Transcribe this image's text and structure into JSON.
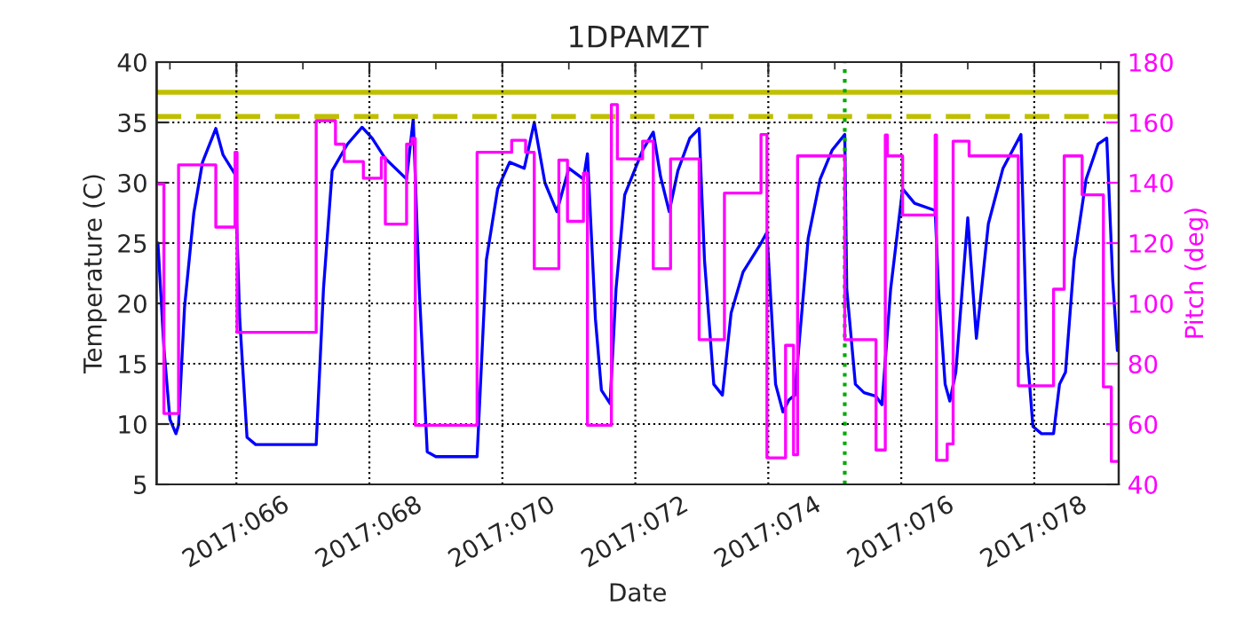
{
  "chart_data": {
    "type": "line",
    "title": "1DPAMZT",
    "xlabel": "Date",
    "ylabel": "Temperature (C)",
    "y2label": "Pitch (deg)",
    "xlim": [
      "2017-03-05T19:12",
      "2017-03-20T06:29"
    ],
    "xticks": [
      {
        "value": "2017-03-06",
        "label": null
      },
      {
        "value": "2017-03-07",
        "label": "2017:066"
      },
      {
        "value": "2017-03-08",
        "label": null
      },
      {
        "value": "2017-03-09",
        "label": "2017:068"
      },
      {
        "value": "2017-03-10",
        "label": null
      },
      {
        "value": "2017-03-11",
        "label": "2017:070"
      },
      {
        "value": "2017-03-12",
        "label": null
      },
      {
        "value": "2017-03-13",
        "label": "2017:072"
      },
      {
        "value": "2017-03-14",
        "label": null
      },
      {
        "value": "2017-03-15",
        "label": "2017:074"
      },
      {
        "value": "2017-03-16",
        "label": null
      },
      {
        "value": "2017-03-17",
        "label": "2017:076"
      },
      {
        "value": "2017-03-18",
        "label": null
      },
      {
        "value": "2017-03-19",
        "label": "2017:078"
      },
      {
        "value": "2017-03-20",
        "label": null
      }
    ],
    "ylim": [
      5,
      40
    ],
    "yticks": [
      5,
      10,
      15,
      20,
      25,
      30,
      35,
      40
    ],
    "y2lim": [
      40,
      180
    ],
    "y2ticks": [
      40,
      60,
      80,
      100,
      120,
      140,
      160,
      180
    ],
    "grid": true,
    "series": [
      {
        "color": "#0000ff",
        "x": [
          "2017-03-05T19:41",
          "2017-03-05T21:50",
          "2017-03-06T00:00",
          "2017-03-06T02:10",
          "2017-03-06T03:07",
          "2017-03-06T05:17",
          "2017-03-06T08:38",
          "2017-03-06T11:46",
          "2017-03-06T16:34",
          "2017-03-06T19:12",
          "2017-03-06T23:31",
          "2017-03-07T01:12",
          "2017-03-07T03:50",
          "2017-03-07T06:58",
          "2017-03-08T04:48",
          "2017-03-08T07:26",
          "2017-03-08T10:34",
          "2017-03-08T16:05",
          "2017-03-08T21:22",
          "2017-03-09T00:58",
          "2017-03-09T05:46",
          "2017-03-09T13:26",
          "2017-03-09T15:50",
          "2017-03-09T18:00",
          "2017-03-09T20:53",
          "2017-03-10T00:00",
          "2017-03-10T14:53",
          "2017-03-10T18:14",
          "2017-03-10T22:19",
          "2017-03-11T02:38",
          "2017-03-11T07:55",
          "2017-03-11T11:31",
          "2017-03-11T15:22",
          "2017-03-11T19:41",
          "2017-03-12T00:00",
          "2017-03-12T05:17",
          "2017-03-12T06:43",
          "2017-03-12T09:36",
          "2017-03-12T11:46",
          "2017-03-12T14:53",
          "2017-03-12T17:02",
          "2017-03-12T20:10",
          "2017-03-13T02:38",
          "2017-03-13T06:29",
          "2017-03-13T09:07",
          "2017-03-13T12:14",
          "2017-03-13T15:22",
          "2017-03-13T19:41",
          "2017-03-13T23:02",
          "2017-03-14T00:58",
          "2017-03-14T04:19",
          "2017-03-14T07:26",
          "2017-03-14T10:34",
          "2017-03-14T14:53",
          "2017-03-14T20:53",
          "2017-03-14T23:31",
          "2017-03-15T02:38",
          "2017-03-15T05:17",
          "2017-03-15T07:26",
          "2017-03-15T09:36",
          "2017-03-15T11:17",
          "2017-03-15T14:24",
          "2017-03-15T18:43",
          "2017-03-15T23:02",
          "2017-03-16T03:36",
          "2017-03-16T04:19",
          "2017-03-16T07:26",
          "2017-03-16T10:34",
          "2017-03-16T14:53",
          "2017-03-16T17:02",
          "2017-03-16T20:10",
          "2017-03-17T00:29",
          "2017-03-17T04:48",
          "2017-03-17T12:14",
          "2017-03-17T13:26",
          "2017-03-17T15:50",
          "2017-03-17T17:31",
          "2017-03-17T19:41",
          "2017-03-18T00:00",
          "2017-03-18T03:07",
          "2017-03-18T07:26",
          "2017-03-18T12:43",
          "2017-03-18T19:12",
          "2017-03-18T21:22",
          "2017-03-18T23:31",
          "2017-03-19T02:38",
          "2017-03-19T06:58",
          "2017-03-19T09:07",
          "2017-03-19T11:17",
          "2017-03-19T14:24",
          "2017-03-19T18:43",
          "2017-03-19T23:02",
          "2017-03-20T02:10",
          "2017-03-20T04:19",
          "2017-03-20T06:00"
        ],
        "values": [
          25,
          16.3,
          10.4,
          9.2,
          9.9,
          19.7,
          27.5,
          31.7,
          34.5,
          32.3,
          30.7,
          18.7,
          8.9,
          8.3,
          8.3,
          21.2,
          31,
          33.2,
          34.6,
          33.7,
          32,
          30.3,
          35.3,
          21.2,
          7.7,
          7.3,
          7.3,
          23.6,
          29.5,
          31.7,
          31.2,
          35,
          30,
          27.6,
          31.2,
          30.3,
          32.4,
          18.7,
          12.8,
          11.7,
          21.2,
          29,
          32.7,
          34.2,
          30.5,
          27.6,
          31,
          33.7,
          34.5,
          23.6,
          13.3,
          12.4,
          19.2,
          22.6,
          24.8,
          25.9,
          13.3,
          11,
          12,
          12.4,
          17.1,
          25.4,
          30.3,
          32.7,
          34,
          21.2,
          13.3,
          12.6,
          12.3,
          11.6,
          21.2,
          29.5,
          28.3,
          27.7,
          21.2,
          13.3,
          11.9,
          14.3,
          27.1,
          17.1,
          26.6,
          31.2,
          34,
          16.1,
          9.8,
          9.2,
          9.2,
          13.3,
          14.3,
          23.6,
          30.3,
          33.2,
          33.7,
          22,
          16.1
        ]
      },
      {
        "type": "step",
        "axis": "y2",
        "color": "#ff00ff",
        "x": [
          "2017-03-05T19:41",
          "2017-03-05T21:50",
          "2017-03-06T03:07",
          "2017-03-06T16:34",
          "2017-03-06T23:31",
          "2017-03-07T00:14",
          "2017-03-08T04:48",
          "2017-03-08T11:46",
          "2017-03-08T14:53",
          "2017-03-08T21:50",
          "2017-03-09T04:19",
          "2017-03-09T05:46",
          "2017-03-09T13:26",
          "2017-03-09T15:22",
          "2017-03-09T16:34",
          "2017-03-10T14:53",
          "2017-03-11T03:22",
          "2017-03-11T08:24",
          "2017-03-11T11:31",
          "2017-03-11T20:24",
          "2017-03-11T23:31",
          "2017-03-12T05:17",
          "2017-03-12T06:43",
          "2017-03-12T15:22",
          "2017-03-12T17:31",
          "2017-03-13T02:38",
          "2017-03-13T06:29",
          "2017-03-13T12:43",
          "2017-03-13T23:02",
          "2017-03-14T08:10",
          "2017-03-14T21:22",
          "2017-03-14T23:31",
          "2017-03-15T06:14",
          "2017-03-15T09:07",
          "2017-03-15T10:34",
          "2017-03-16T03:36",
          "2017-03-16T14:53",
          "2017-03-16T18:14",
          "2017-03-16T18:58",
          "2017-03-17T00:29",
          "2017-03-17T12:14",
          "2017-03-17T12:43",
          "2017-03-17T16:34",
          "2017-03-17T18:43",
          "2017-03-18T00:29",
          "2017-03-18T18:14",
          "2017-03-19T06:58",
          "2017-03-19T10:48",
          "2017-03-19T17:17",
          "2017-03-20T00:58",
          "2017-03-20T03:50",
          "2017-03-20T06:00"
        ],
        "values": [
          139.6,
          63.5,
          145.9,
          125.3,
          150.1,
          90.4,
          160.6,
          152.8,
          147,
          141.5,
          148.3,
          126.3,
          152.8,
          154.7,
          59.6,
          150.1,
          154.1,
          150.1,
          111.5,
          147.5,
          127.2,
          143.2,
          59.6,
          165.9,
          147.9,
          153.8,
          111.5,
          147.9,
          88,
          136.6,
          156,
          48.8,
          86.1,
          49.8,
          148.9,
          88,
          51.4,
          155.8,
          148.9,
          129.3,
          155.8,
          48,
          53.4,
          153.8,
          148.9,
          72.7,
          104.7,
          148.9,
          136,
          72.3,
          47.6,
          47.6
        ]
      }
    ],
    "ref_lines": [
      {
        "axis": "y",
        "value": 37.5,
        "color": "#bfbf00",
        "line_style": "solid"
      },
      {
        "axis": "y",
        "value": 35.5,
        "color": "#bfbf00",
        "line_style": "dashed"
      },
      {
        "axis": "x",
        "value": "2017-03-16T03:36",
        "color": "#00aa00",
        "line_style": "dotted"
      }
    ]
  }
}
